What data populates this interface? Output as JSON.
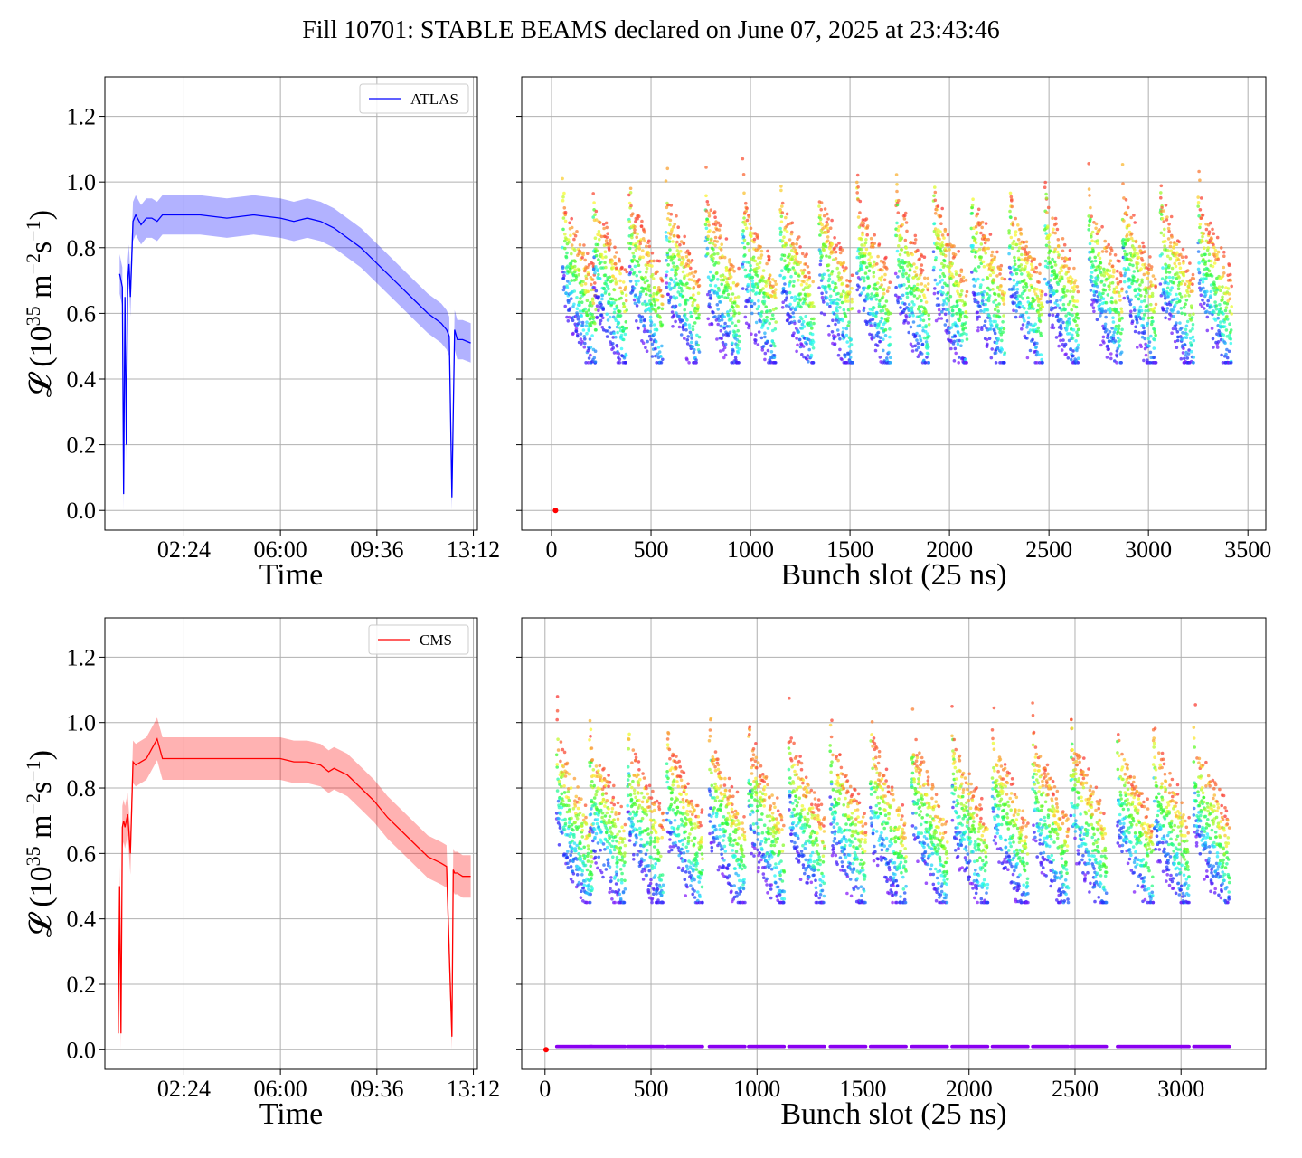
{
  "figure": {
    "title": "Fill 10701: STABLE BEAMS declared on June 07, 2025 at 23:43:46",
    "ylabel_main": "𝓛 (10",
    "ylabel_exp1": "35",
    "ylabel_mid": " m",
    "ylabel_exp2": "−2",
    "ylabel_s": "s",
    "ylabel_exp3": "−1",
    "ylabel_end": ")",
    "colors": {
      "atlas": "#0000ff",
      "cms": "#ff0000",
      "grid": "#b0b0b0"
    }
  },
  "chart_data": [
    {
      "id": "atlas_time",
      "type": "line",
      "legend": "ATLAS",
      "legend_position": "top-right",
      "xlabel": "Time",
      "ylabel": "𝓛 (10^35 m^-2 s^-1)",
      "x_unit": "hours",
      "x_ticks": [
        2.4,
        6.0,
        9.6,
        13.2
      ],
      "x_tick_labels": [
        "02:24",
        "06:00",
        "09:36",
        "13:12"
      ],
      "xlim": [
        -0.55,
        13.35
      ],
      "y_ticks": [
        0.0,
        0.2,
        0.4,
        0.6,
        0.8,
        1.0,
        1.2
      ],
      "y_tick_labels": [
        "0.0",
        "0.2",
        "0.4",
        "0.6",
        "0.8",
        "1.0",
        "1.2"
      ],
      "ylim": [
        -0.06,
        1.32
      ],
      "grid": true,
      "color": "#0000ff",
      "band_halfwidth": 0.06,
      "x": [
        0.0,
        0.1,
        0.15,
        0.2,
        0.25,
        0.3,
        0.35,
        0.4,
        0.5,
        0.6,
        0.8,
        1.0,
        1.2,
        1.4,
        1.6,
        2.0,
        3.0,
        4.0,
        5.0,
        6.0,
        6.5,
        7.0,
        7.5,
        8.0,
        8.5,
        9.0,
        9.5,
        10.0,
        10.5,
        11.0,
        11.5,
        12.0,
        12.1,
        12.2,
        12.3,
        12.4,
        12.5,
        12.6,
        12.8,
        13.1
      ],
      "y": [
        0.72,
        0.68,
        0.05,
        0.65,
        0.2,
        0.7,
        0.75,
        0.65,
        0.88,
        0.9,
        0.87,
        0.89,
        0.89,
        0.88,
        0.9,
        0.9,
        0.9,
        0.89,
        0.9,
        0.89,
        0.88,
        0.89,
        0.88,
        0.86,
        0.83,
        0.8,
        0.76,
        0.72,
        0.68,
        0.64,
        0.6,
        0.57,
        0.56,
        0.55,
        0.53,
        0.04,
        0.55,
        0.52,
        0.52,
        0.51
      ]
    },
    {
      "id": "atlas_bunch",
      "type": "scatter",
      "xlabel": "Bunch slot (25 ns)",
      "x_ticks": [
        0,
        500,
        1000,
        1500,
        2000,
        2500,
        3000,
        3500
      ],
      "x_tick_labels": [
        "0",
        "500",
        "1000",
        "1500",
        "2000",
        "2500",
        "3000",
        "3500"
      ],
      "xlim": [
        -150,
        3590
      ],
      "y_ticks": [
        0.0,
        0.2,
        0.4,
        0.6,
        0.8,
        1.0,
        1.2
      ],
      "ylim": [
        -0.06,
        1.32
      ],
      "grid": true,
      "colormap": "rainbow",
      "train_starts": [
        55,
        210,
        390,
        575,
        775,
        960,
        1150,
        1345,
        1535,
        1730,
        1920,
        2110,
        2300,
        2480,
        2700,
        2870,
        3060,
        3250
      ],
      "train_length": 170,
      "last_slot": 3430,
      "y_range": [
        0.45,
        1.17
      ],
      "isolated_points": [
        {
          "x": 20,
          "y": 0.0
        }
      ]
    },
    {
      "id": "cms_time",
      "type": "line",
      "legend": "CMS",
      "legend_position": "top-right",
      "xlabel": "Time",
      "ylabel": "𝓛 (10^35 m^-2 s^-1)",
      "x_unit": "hours",
      "x_ticks": [
        2.4,
        6.0,
        9.6,
        13.2
      ],
      "x_tick_labels": [
        "02:24",
        "06:00",
        "09:36",
        "13:12"
      ],
      "xlim": [
        -0.55,
        13.35
      ],
      "y_ticks": [
        0.0,
        0.2,
        0.4,
        0.6,
        0.8,
        1.0,
        1.2
      ],
      "y_tick_labels": [
        "0.0",
        "0.2",
        "0.4",
        "0.6",
        "0.8",
        "1.0",
        "1.2"
      ],
      "ylim": [
        -0.06,
        1.32
      ],
      "grid": true,
      "color": "#ff0000",
      "band_halfwidth": 0.065,
      "x": [
        -0.05,
        0.0,
        0.05,
        0.1,
        0.15,
        0.2,
        0.3,
        0.4,
        0.5,
        0.6,
        0.8,
        1.0,
        1.4,
        1.6,
        2.0,
        3.0,
        4.0,
        5.0,
        6.0,
        6.5,
        7.0,
        7.5,
        7.8,
        8.0,
        8.5,
        9.0,
        9.5,
        10.0,
        10.5,
        11.0,
        11.5,
        12.0,
        12.2,
        12.4,
        12.45,
        12.5,
        12.6,
        12.8,
        13.1
      ],
      "y": [
        0.05,
        0.5,
        0.05,
        0.68,
        0.7,
        0.68,
        0.72,
        0.6,
        0.88,
        0.87,
        0.88,
        0.89,
        0.95,
        0.89,
        0.89,
        0.89,
        0.89,
        0.89,
        0.89,
        0.88,
        0.88,
        0.87,
        0.85,
        0.86,
        0.84,
        0.8,
        0.76,
        0.71,
        0.67,
        0.63,
        0.59,
        0.57,
        0.56,
        0.04,
        0.55,
        0.54,
        0.54,
        0.53,
        0.53
      ]
    },
    {
      "id": "cms_bunch",
      "type": "scatter",
      "xlabel": "Bunch slot (25 ns)",
      "x_ticks": [
        0,
        500,
        1000,
        1500,
        2000,
        2500,
        3000
      ],
      "x_tick_labels": [
        "0",
        "500",
        "1000",
        "1500",
        "2000",
        "2500",
        "3000"
      ],
      "xlim": [
        -110,
        3400
      ],
      "y_ticks": [
        0.0,
        0.2,
        0.4,
        0.6,
        0.8,
        1.0,
        1.2
      ],
      "ylim": [
        -0.06,
        1.32
      ],
      "grid": true,
      "colormap": "rainbow",
      "train_starts": [
        55,
        210,
        390,
        575,
        775,
        960,
        1150,
        1345,
        1535,
        1730,
        1920,
        2110,
        2300,
        2480,
        2700,
        2870,
        3060
      ],
      "train_length": 170,
      "last_slot": 3240,
      "y_range": [
        0.45,
        1.26
      ],
      "low_series_level": 0.01,
      "isolated_points": [
        {
          "x": 5,
          "y": 0.0
        }
      ]
    }
  ]
}
